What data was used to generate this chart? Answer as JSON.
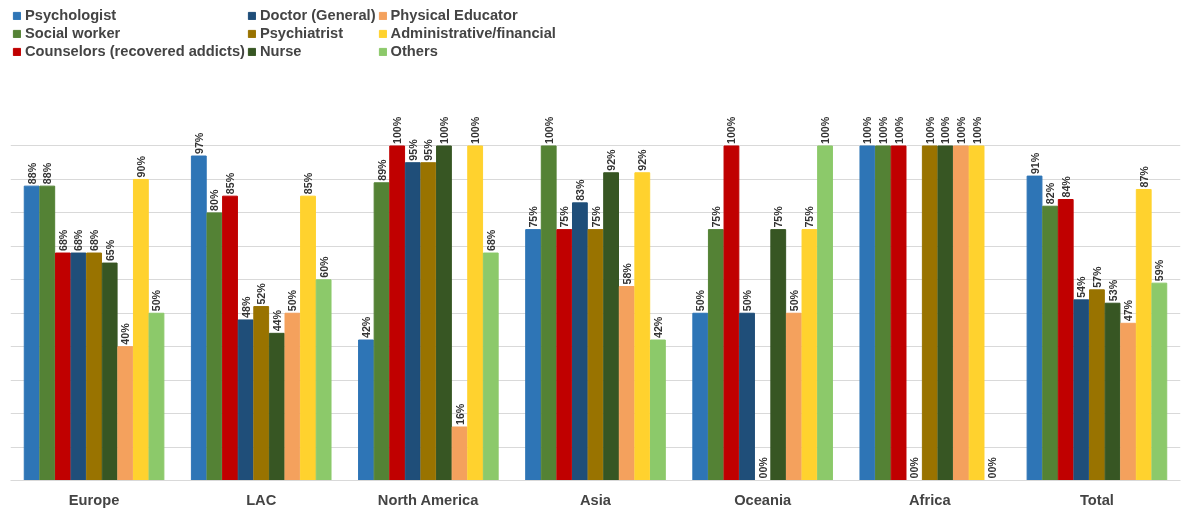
{
  "chart_data": {
    "type": "bar",
    "categories": [
      "Europe",
      "LAC",
      "North America",
      "Asia",
      "Oceania",
      "Africa",
      "Total"
    ],
    "series": [
      {
        "name": "Psychologist",
        "color": "#2e75b6",
        "values": [
          88,
          97,
          42,
          75,
          50,
          100,
          91
        ],
        "value_labels": [
          "88%",
          "97%",
          "42%",
          "75%",
          "50%",
          "100%",
          "91%"
        ]
      },
      {
        "name": "Social worker",
        "color": "#548235",
        "values": [
          88,
          80,
          89,
          100,
          75,
          100,
          82
        ],
        "value_labels": [
          "88%",
          "80%",
          "89%",
          "100%",
          "75%",
          "100%",
          "82%"
        ]
      },
      {
        "name": "Counselors (recovered addicts)",
        "color": "#c00000",
        "values": [
          68,
          85,
          100,
          75,
          100,
          100,
          84
        ],
        "value_labels": [
          "68%",
          "85%",
          "100%",
          "75%",
          "100%",
          "100%",
          "84%"
        ]
      },
      {
        "name": "Doctor (General)",
        "color": "#1f4e79",
        "values": [
          68,
          48,
          95,
          83,
          50,
          0,
          54
        ],
        "value_labels": [
          "68%",
          "48%",
          "95%",
          "83%",
          "50%",
          "00%",
          "54%"
        ]
      },
      {
        "name": "Psychiatrist",
        "color": "#997300",
        "values": [
          68,
          52,
          95,
          75,
          0,
          100,
          57
        ],
        "value_labels": [
          "68%",
          "52%",
          "95%",
          "75%",
          "00%",
          "100%",
          "57%"
        ]
      },
      {
        "name": "Nurse",
        "color": "#375623",
        "values": [
          65,
          44,
          100,
          92,
          75,
          100,
          53
        ],
        "value_labels": [
          "65%",
          "44%",
          "100%",
          "92%",
          "75%",
          "100%",
          "53%"
        ]
      },
      {
        "name": "Physical Educator",
        "color": "#f4a15d",
        "values": [
          40,
          50,
          16,
          58,
          50,
          100,
          47
        ],
        "value_labels": [
          "40%",
          "50%",
          "16%",
          "58%",
          "50%",
          "100%",
          "47%"
        ]
      },
      {
        "name": "Administrative/financial",
        "color": "#ffd22e",
        "values": [
          90,
          85,
          100,
          92,
          75,
          100,
          87
        ],
        "value_labels": [
          "90%",
          "85%",
          "100%",
          "92%",
          "75%",
          "100%",
          "87%"
        ]
      },
      {
        "name": "Others",
        "color": "#8cc96a",
        "values": [
          50,
          60,
          68,
          42,
          100,
          0,
          59
        ],
        "value_labels": [
          "50%",
          "60%",
          "68%",
          "42%",
          "100%",
          "00%",
          "59%"
        ]
      }
    ],
    "ylim": [
      0,
      100
    ],
    "yticks": [
      {
        "value": 0,
        "label": null
      },
      {
        "value": 10,
        "label": null
      },
      {
        "value": 20,
        "label": null
      },
      {
        "value": 30,
        "label": null
      },
      {
        "value": 40,
        "label": null
      },
      {
        "value": 50,
        "label": null
      },
      {
        "value": 60,
        "label": null
      },
      {
        "value": 70,
        "label": null
      },
      {
        "value": 80,
        "label": null
      },
      {
        "value": 90,
        "label": null
      },
      {
        "value": 100,
        "label": null
      }
    ],
    "grid": "y",
    "legend": "top",
    "tick_labels": "x"
  }
}
